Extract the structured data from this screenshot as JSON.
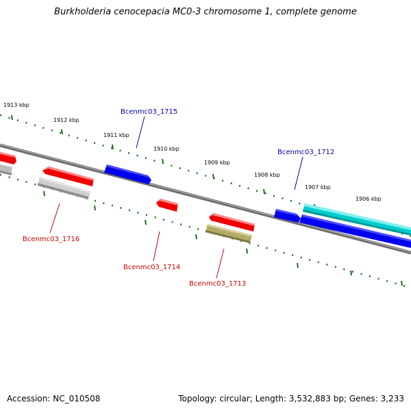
{
  "title": "Burkholderia cenocepacia MC0-3 chromosome 1, complete genome",
  "footer": {
    "accession": "Accession: NC_010508",
    "summary": "Topology: circular; Length: 3,532,883 bp; Genes: 3,233"
  },
  "colors": {
    "forward_gene": "#0000ee",
    "reverse_gene": "#ff0000",
    "highlight_gene": "#00cccc",
    "pseudo_gene": "#bbbbbb",
    "rna_feature": "#b3aa66",
    "tick": "#1a6e1a",
    "backbone": "#808080",
    "label_forward": "#0000aa",
    "label_reverse": "#cc0000"
  },
  "ruler_labels": [
    "1913 kbp",
    "1912 kbp",
    "1911 kbp",
    "1910 kbp",
    "1909 kbp",
    "1908 kbp",
    "1907 kbp",
    "1906 kbp"
  ],
  "gene_labels": {
    "g1715": "Bcenmc03_1715",
    "g1712": "Bcenmc03_1712",
    "g1716": "Bcenmc03_1716",
    "g1714": "Bcenmc03_1714",
    "g1713": "Bcenmc03_1713"
  }
}
